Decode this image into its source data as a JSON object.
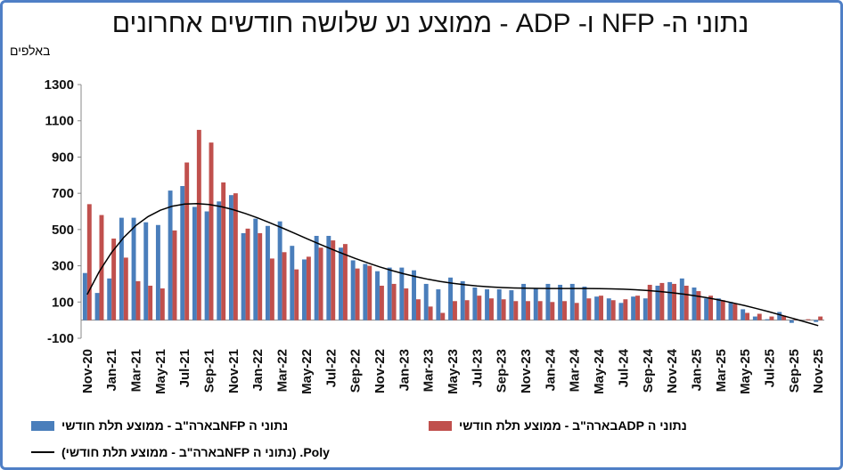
{
  "chart_data": {
    "type": "bar",
    "title": "נתוני ה- NFP ו- ADP - ממוצע נע שלושה חודשים אחרונים",
    "y_label": "באלפים",
    "categories": [
      "Nov-20",
      null,
      "Jan-21",
      null,
      "Mar-21",
      null,
      "May-21",
      null,
      "Jul-21",
      null,
      "Sep-21",
      null,
      "Nov-21",
      null,
      "Jan-22",
      null,
      "Mar-22",
      null,
      "May-22",
      null,
      "Jul-22",
      null,
      "Sep-22",
      null,
      "Nov-22",
      null,
      "Jan-23",
      null,
      "Mar-23",
      null,
      "May-23",
      null,
      "Jul-23",
      null,
      "Sep-23",
      null,
      "Nov-23",
      null,
      "Jan-24",
      null,
      "Mar-24",
      null,
      "May-24",
      null,
      "Jul-24",
      null,
      "Sep-24",
      null,
      "Nov-24",
      null,
      "Jan-25",
      null,
      "Mar-25",
      null,
      "May-25",
      null,
      "Jul-25",
      null,
      "Sep-25",
      null,
      "Nov-25"
    ],
    "series": [
      {
        "name": "נתוני ה NFPבארה\"ב - ממוצע תלת חודשי",
        "color": "#4a7ebb",
        "values": [
          260,
          150,
          230,
          565,
          565,
          540,
          525,
          715,
          740,
          625,
          600,
          655,
          690,
          480,
          560,
          520,
          545,
          410,
          335,
          465,
          465,
          400,
          330,
          310,
          270,
          290,
          290,
          275,
          200,
          170,
          235,
          215,
          180,
          170,
          170,
          165,
          200,
          175,
          200,
          195,
          200,
          185,
          130,
          120,
          95,
          130,
          120,
          190,
          210,
          230,
          180,
          120,
          120,
          100,
          60,
          20,
          5,
          45,
          -15,
          0,
          -10
        ]
      },
      {
        "name": "נתוני ה ADPבארה\"ב - ממוצע תלת חודשי",
        "color": "#c0504d",
        "values": [
          640,
          580,
          450,
          345,
          215,
          190,
          175,
          495,
          870,
          1050,
          980,
          760,
          700,
          505,
          480,
          340,
          375,
          280,
          350,
          400,
          440,
          420,
          285,
          300,
          190,
          200,
          175,
          115,
          75,
          40,
          105,
          110,
          135,
          120,
          115,
          105,
          105,
          105,
          100,
          105,
          95,
          120,
          135,
          110,
          115,
          135,
          195,
          205,
          200,
          190,
          160,
          135,
          110,
          90,
          40,
          35,
          20,
          25,
          5,
          5,
          20
        ]
      }
    ],
    "trendline": {
      "name": "Poly. (נתוני ה NFPבארה\"ב - ממוצע תלת חודשי)",
      "series": 0,
      "order": 6,
      "color": "#000000"
    },
    "ylim": [
      -100,
      1300
    ],
    "yticks": [
      -100,
      100,
      300,
      500,
      700,
      900,
      1100,
      1300
    ],
    "grid": false
  }
}
